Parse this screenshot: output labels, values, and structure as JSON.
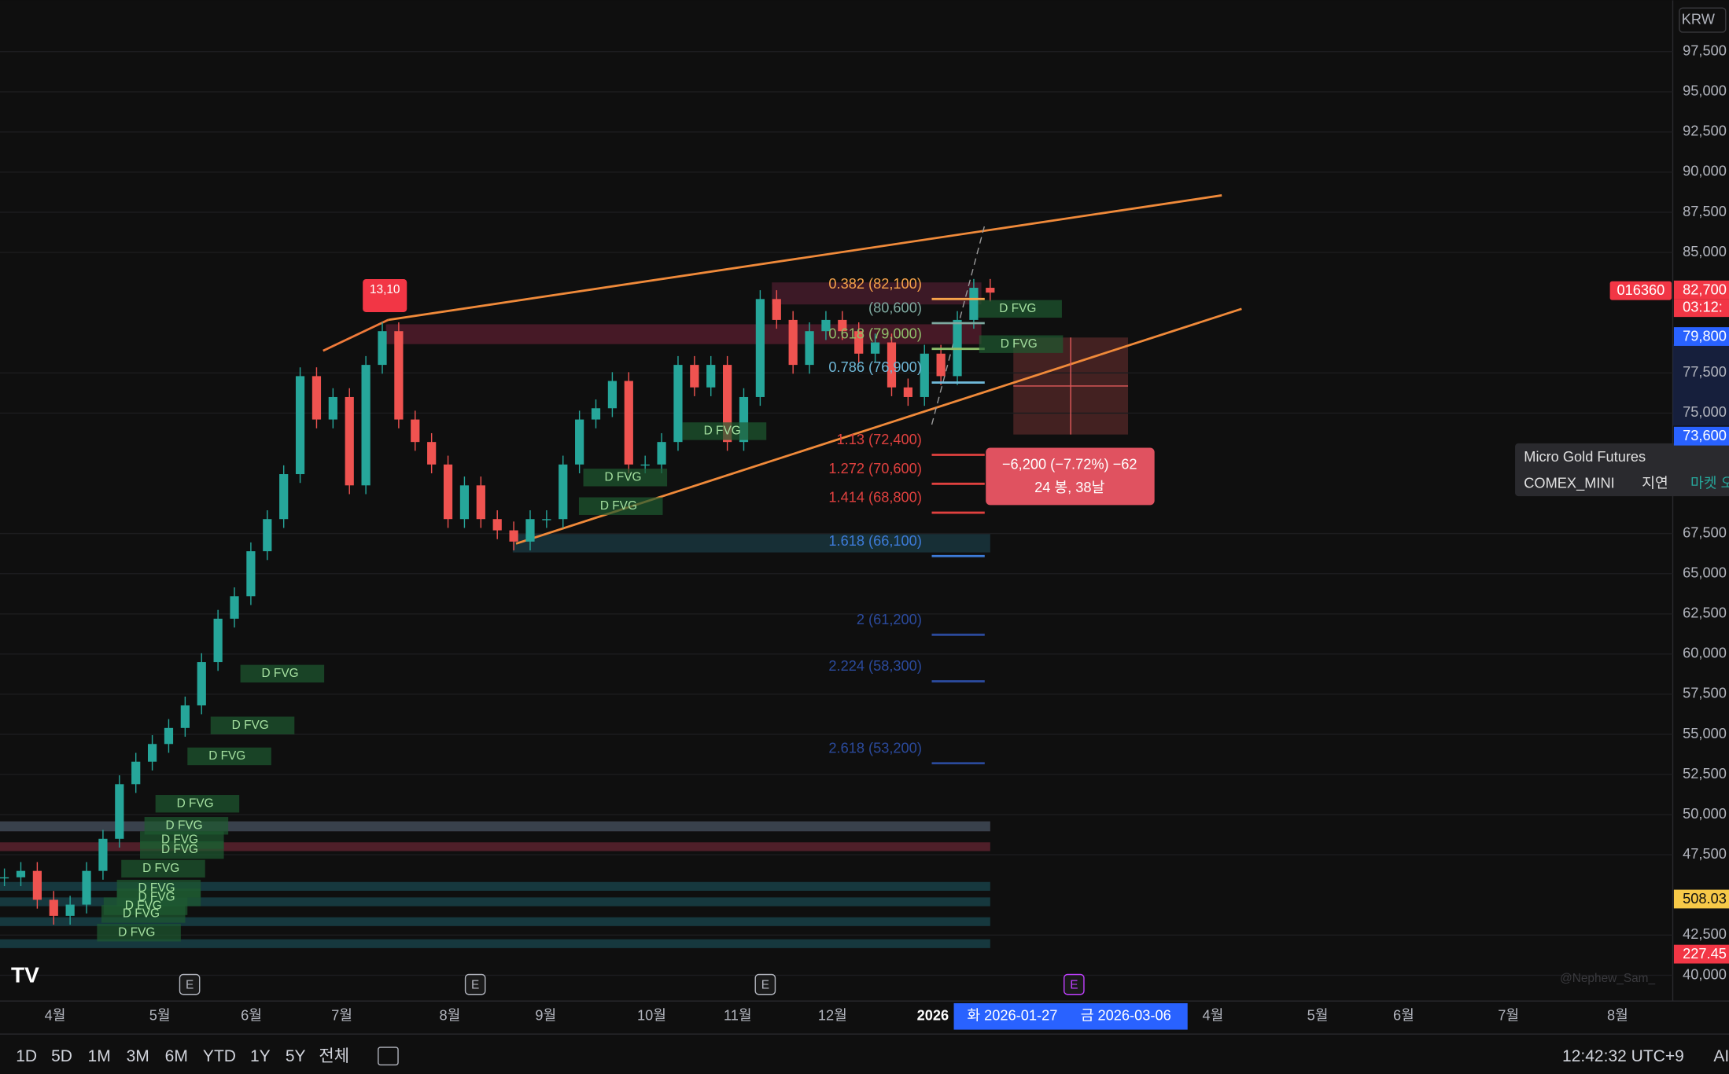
{
  "currency": "KRW",
  "symbol_tag": "016360",
  "pivot_tag": "13,10",
  "price_axis": {
    "ylim": [
      38400,
      100700
    ],
    "ticks": [
      {
        "value": 97500,
        "label": "97,500"
      },
      {
        "value": 95000,
        "label": "95,000"
      },
      {
        "value": 92500,
        "label": "92,500"
      },
      {
        "value": 90000,
        "label": "90,000"
      },
      {
        "value": 87500,
        "label": "87,500"
      },
      {
        "value": 85000,
        "label": "85,000"
      },
      {
        "value": 77500,
        "label": "77,500"
      },
      {
        "value": 75000,
        "label": "75,000"
      },
      {
        "value": 67500,
        "label": "67,500"
      },
      {
        "value": 65000,
        "label": "65,000"
      },
      {
        "value": 62500,
        "label": "62,500"
      },
      {
        "value": 60000,
        "label": "60,000"
      },
      {
        "value": 57500,
        "label": "57,500"
      },
      {
        "value": 55000,
        "label": "55,000"
      },
      {
        "value": 52500,
        "label": "52,500"
      },
      {
        "value": 50000,
        "label": "50,000"
      },
      {
        "value": 47500,
        "label": "47,500"
      },
      {
        "value": 42500,
        "label": "42,500"
      },
      {
        "value": 40000,
        "label": "40,000"
      }
    ],
    "tags": [
      {
        "value": 82700,
        "label": "82,700",
        "color": "#f23645"
      },
      {
        "value": 79800,
        "label": "79,800",
        "color": "#2962ff"
      },
      {
        "value": 73600,
        "label": "73,600",
        "color": "#2962ff"
      }
    ],
    "countdown": "03:12:",
    "indicator_tags": [
      {
        "label": "508.03",
        "color": "#f7c948"
      },
      {
        "label": "227.45",
        "color": "#f23645"
      }
    ]
  },
  "closes": [
    46100,
    46500,
    44700,
    43700,
    44400,
    46500,
    48500,
    51900,
    53300,
    54400,
    55400,
    56800,
    59500,
    62200,
    63600,
    66400,
    68400,
    71200,
    77300,
    74600,
    76000,
    70500,
    78000,
    80100,
    74600,
    73200,
    71800,
    68400,
    70500,
    68400,
    67700,
    67000,
    68400,
    68400,
    71800,
    74600,
    75300,
    77000,
    71800,
    71800,
    73200,
    78000,
    76600,
    78000,
    73200,
    76000,
    82100,
    80800,
    78000,
    80100,
    80800,
    80100,
    78700,
    79400,
    76600,
    76000,
    78700,
    77300,
    80800,
    82800,
    82500
  ],
  "fib_levels": [
    {
      "label": "0.382 (82,100)",
      "value": 82100,
      "color": "#f7a34a"
    },
    {
      "label": "(80,600)",
      "value": 80600,
      "color": "#7fa9a0"
    },
    {
      "label": "0.618 (79,000)",
      "value": 79000,
      "color": "#8fbf6a"
    },
    {
      "label": "0.786 (76,900)",
      "value": 76900,
      "color": "#6fb8d8"
    },
    {
      "label": "1.13 (72,400)",
      "value": 72400,
      "color": "#e0413f"
    },
    {
      "label": "1.272 (70,600)",
      "value": 70600,
      "color": "#e0413f"
    },
    {
      "label": "1.414 (68,800)",
      "value": 68800,
      "color": "#e0413f"
    },
    {
      "label": "1.618 (66,100)",
      "value": 66100,
      "color": "#3d7bd8"
    },
    {
      "label": "2 (61,200)",
      "value": 61200,
      "color": "#2b4a9c"
    },
    {
      "label": "2.224 (58,300)",
      "value": 58300,
      "color": "#2b4a9c"
    },
    {
      "label": "2.618 (53,200)",
      "value": 53200,
      "color": "#2b4a9c"
    }
  ],
  "fvg_labels": [
    "D FVG",
    "D FVG",
    "D FVG",
    "D FVG",
    "D FVG",
    "D FVG",
    "D FVG",
    "D FVG",
    "D FVG",
    "D FVG",
    "D FVG",
    "D FVG",
    "D FVG",
    "D FVG",
    "D FVG",
    "D FVG",
    "D FVG",
    "D FVG"
  ],
  "time_axis": [
    "4월",
    "5월",
    "6월",
    "7월",
    "8월",
    "9월",
    "10월",
    "11월",
    "12월",
    "2026",
    "4월",
    "5월",
    "6월",
    "7월",
    "8월"
  ],
  "time_range": [
    "화 2026-01-27",
    "금 2026-03-06"
  ],
  "measure": {
    "line1": "−6,200 (−7.72%) −62",
    "line2": "24 봉, 38날"
  },
  "tooltip": {
    "name": "Micro Gold Futures",
    "exchange": "COMEX_MINI",
    "status": "지연",
    "market": "마켓 오"
  },
  "earnings_marker": "E",
  "watermark": "@Nephew_Sam_",
  "toolbar": {
    "ranges": [
      "1D",
      "5D",
      "1M",
      "3M",
      "6M",
      "YTD",
      "1Y",
      "5Y",
      "전체"
    ],
    "clock": "12:42:32 UTC+9",
    "extra": "AI"
  }
}
